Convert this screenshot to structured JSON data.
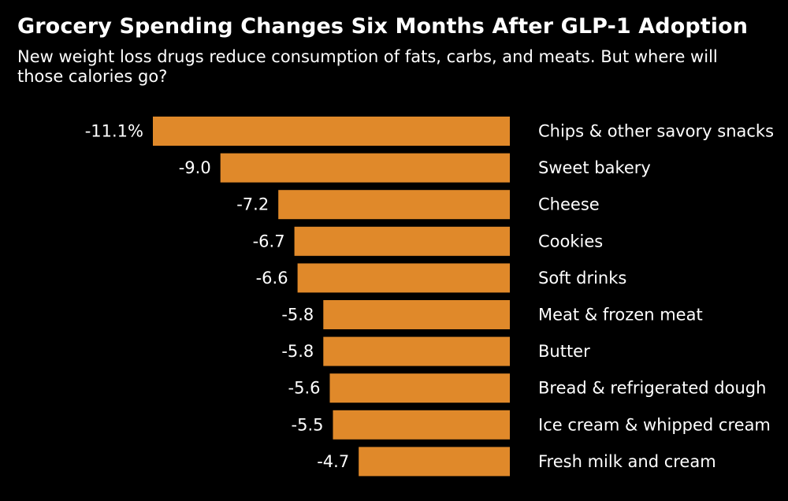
{
  "chart_data": {
    "type": "bar",
    "orientation": "horizontal",
    "title": "Grocery Spending Changes Six Months After GLP-1 Adoption",
    "subtitle": "New weight loss drugs reduce consumption of fats, carbs, and meats. But where will those calories go?",
    "unit_suffix_first": "%",
    "bar_color": "#e0892a",
    "background": "#000000",
    "xlim": [
      -11.1,
      0
    ],
    "categories": [
      "Chips & other savory snacks",
      "Sweet bakery",
      "Cheese",
      "Cookies",
      "Soft drinks",
      "Meat & frozen meat",
      "Butter",
      "Bread & refrigerated dough",
      "Ice cream & whipped cream",
      "Fresh milk and cream"
    ],
    "values": [
      -11.1,
      -9.0,
      -7.2,
      -6.7,
      -6.6,
      -5.8,
      -5.8,
      -5.6,
      -5.5,
      -4.7
    ],
    "value_labels": [
      "-11.1%",
      "-9.0",
      "-7.2",
      "-6.7",
      "-6.6",
      "-5.8",
      "-5.8",
      "-5.6",
      "-5.5",
      "-4.7"
    ]
  }
}
